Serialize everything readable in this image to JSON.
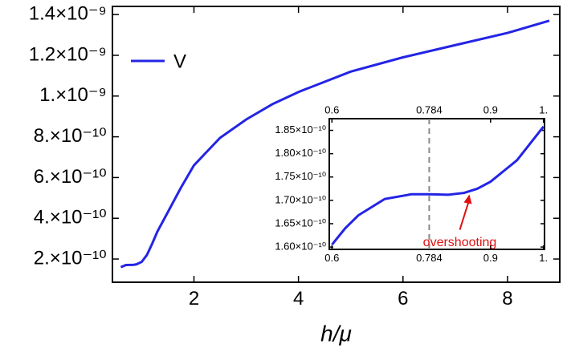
{
  "chart_data": [
    {
      "type": "line",
      "xlabel": "h/μ",
      "x": [
        0.6,
        0.7,
        0.8,
        0.85,
        0.9,
        1.0,
        1.1,
        1.2,
        1.3,
        1.5,
        1.75,
        2.0,
        2.5,
        3.0,
        3.5,
        4.0,
        5.0,
        6.0,
        7.0,
        8.0,
        8.8
      ],
      "series": [
        {
          "name": "V",
          "color": "#2424e6",
          "values": [
            1.6e-10,
            1.705e-10,
            1.71e-10,
            1.715e-10,
            1.74e-10,
            1.86e-10,
            2.2e-10,
            2.75e-10,
            3.35e-10,
            4.3e-10,
            5.5e-10,
            6.6e-10,
            7.95e-10,
            8.85e-10,
            9.6e-10,
            1.02e-09,
            1.12e-09,
            1.19e-09,
            1.25e-09,
            1.31e-09,
            1.37e-09
          ]
        }
      ],
      "xlim": [
        0.44,
        9.0
      ],
      "ylim": [
        8.6e-11,
        1.44e-09
      ],
      "xticks": [
        2,
        4,
        6,
        8
      ],
      "yticks": [
        {
          "value": 2e-10,
          "label": "2.×10⁻¹⁰"
        },
        {
          "value": 4e-10,
          "label": "4.×10⁻¹⁰"
        },
        {
          "value": 6e-10,
          "label": "6.×10⁻¹⁰"
        },
        {
          "value": 8e-10,
          "label": "8.×10⁻¹⁰"
        },
        {
          "value": 1e-09,
          "label": "1.×10⁻⁹"
        },
        {
          "value": 1.2e-09,
          "label": "1.2×10⁻⁹"
        },
        {
          "value": 1.4e-09,
          "label": "1.4×10⁻⁹"
        }
      ],
      "legend": "top-left"
    },
    {
      "type": "line",
      "x": [
        0.6,
        0.625,
        0.65,
        0.7,
        0.75,
        0.784,
        0.82,
        0.85,
        0.875,
        0.9,
        0.95,
        1.0
      ],
      "series": [
        {
          "color": "#2424e6",
          "values": [
            1.605e-10,
            1.64e-10,
            1.668e-10,
            1.703e-10,
            1.713e-10,
            1.713e-10,
            1.712e-10,
            1.716e-10,
            1.725e-10,
            1.74e-10,
            1.786e-10,
            1.858e-10
          ]
        }
      ],
      "xlim": [
        0.595,
        1.002
      ],
      "ylim": [
        1.595e-10,
        1.875e-10
      ],
      "xticks": [
        0.6,
        0.784,
        0.9,
        {
          "value": 1,
          "label": "1."
        }
      ],
      "yticks": [
        {
          "value": 1.6e-10,
          "label": "1.60×10⁻¹⁰"
        },
        {
          "value": 1.65e-10,
          "label": "1.65×10⁻¹⁰"
        },
        {
          "value": 1.7e-10,
          "label": "1.70×10⁻¹⁰"
        },
        {
          "value": 1.75e-10,
          "label": "1.75×10⁻¹⁰"
        },
        {
          "value": 1.8e-10,
          "label": "1.80×10⁻¹⁰"
        },
        {
          "value": 1.85e-10,
          "label": "1.85×10⁻¹⁰"
        }
      ],
      "mirror_xtick_labels": true,
      "reference_x": 0.784,
      "annotation": {
        "text": "overshooting",
        "x": 0.86,
        "y": 1.716e-10,
        "color": "#e01010"
      }
    }
  ]
}
